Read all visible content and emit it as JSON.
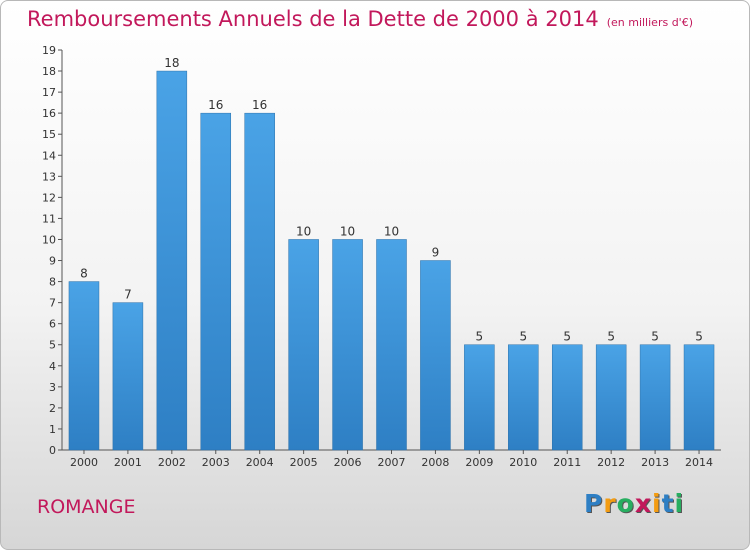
{
  "chart_data": {
    "type": "bar",
    "title": "Remboursements Annuels de la Dette de 2000 à 2014",
    "unit_note": "(en milliers d'€)",
    "categories": [
      "2000",
      "2001",
      "2002",
      "2003",
      "2004",
      "2005",
      "2006",
      "2007",
      "2008",
      "2009",
      "2010",
      "2011",
      "2012",
      "2013",
      "2014"
    ],
    "values": [
      8,
      7,
      18,
      16,
      16,
      10,
      10,
      10,
      9,
      5,
      5,
      5,
      5,
      5,
      5
    ],
    "ylim": [
      0,
      19
    ],
    "yticks": [
      0,
      1,
      2,
      3,
      4,
      5,
      6,
      7,
      8,
      9,
      10,
      11,
      12,
      13,
      14,
      15,
      16,
      17,
      18,
      19
    ],
    "xlabel": "",
    "ylabel": "",
    "grid": false,
    "bar_color": "#4aa3e6",
    "bar_color_dark": "#2e7fc4"
  },
  "commune": "ROMANGE",
  "logo": {
    "letters": [
      "P",
      "r",
      "o",
      "x",
      "i",
      "t",
      "i"
    ],
    "colors": [
      "#2e7fc4",
      "#f39c12",
      "#27ae60",
      "#c2185b",
      "#f39c12",
      "#2e7fc4",
      "#27ae60"
    ]
  },
  "colors": {
    "accent": "#c2185b"
  }
}
